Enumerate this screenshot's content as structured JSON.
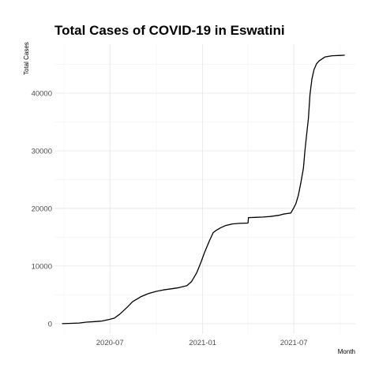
{
  "chart_data": {
    "type": "line",
    "title": "Total Cases of COVID-19 in Eswatini",
    "xlabel": "Month",
    "ylabel": "Total Cases",
    "x_tick_labels": [
      "2020-07",
      "2021-01",
      "2021-07"
    ],
    "x_ticks": [
      "2020-07-01",
      "2021-01-01",
      "2021-07-01"
    ],
    "x_minor_ticks": [
      "2020-04-01",
      "2020-10-01",
      "2021-04-01",
      "2021-10-01"
    ],
    "xlim": [
      "2020-03-13",
      "2021-10-31"
    ],
    "y_tick_labels": [
      "0",
      "10000",
      "20000",
      "30000",
      "40000"
    ],
    "y_ticks": [
      0,
      10000,
      20000,
      30000,
      40000
    ],
    "y_minor_ticks": [
      5000,
      15000,
      25000,
      35000,
      45000
    ],
    "ylim": [
      -1800,
      48500
    ],
    "grid": true,
    "series": [
      {
        "x": [
          "2020-03-28",
          "2020-04-15",
          "2020-05-01",
          "2020-05-15",
          "2020-06-01",
          "2020-06-15",
          "2020-07-01",
          "2020-07-10",
          "2020-07-20",
          "2020-07-25",
          "2020-08-05",
          "2020-08-15",
          "2020-09-01",
          "2020-09-15",
          "2020-10-01",
          "2020-10-15",
          "2020-11-01",
          "2020-11-15",
          "2020-12-01",
          "2020-12-10",
          "2020-12-20",
          "2020-12-28",
          "2021-01-05",
          "2021-01-15",
          "2021-01-22",
          "2021-01-28",
          "2021-02-05",
          "2021-02-15",
          "2021-03-01",
          "2021-03-15",
          "2021-04-01",
          "2021-04-02",
          "2021-04-15",
          "2021-05-01",
          "2021-05-15",
          "2021-06-01",
          "2021-06-10",
          "2021-06-17",
          "2021-06-25",
          "2021-07-01",
          "2021-07-05",
          "2021-07-10",
          "2021-07-15",
          "2021-07-20",
          "2021-07-23",
          "2021-07-26",
          "2021-07-30",
          "2021-08-02",
          "2021-08-06",
          "2021-08-10",
          "2021-08-15",
          "2021-08-20",
          "2021-09-01",
          "2021-09-15",
          "2021-10-01",
          "2021-10-10"
        ],
        "y": [
          0,
          50,
          100,
          250,
          350,
          450,
          750,
          950,
          1600,
          2000,
          2900,
          3800,
          4700,
          5200,
          5600,
          5850,
          6050,
          6250,
          6600,
          7300,
          8800,
          10500,
          12400,
          14500,
          15800,
          16200,
          16600,
          17000,
          17300,
          17400,
          17450,
          18400,
          18450,
          18500,
          18600,
          18800,
          19000,
          19100,
          19200,
          20100,
          20800,
          22300,
          24500,
          27000,
          30000,
          32500,
          35600,
          39800,
          42500,
          44100,
          45100,
          45600,
          46300,
          46500,
          46550,
          46600
        ]
      }
    ]
  }
}
